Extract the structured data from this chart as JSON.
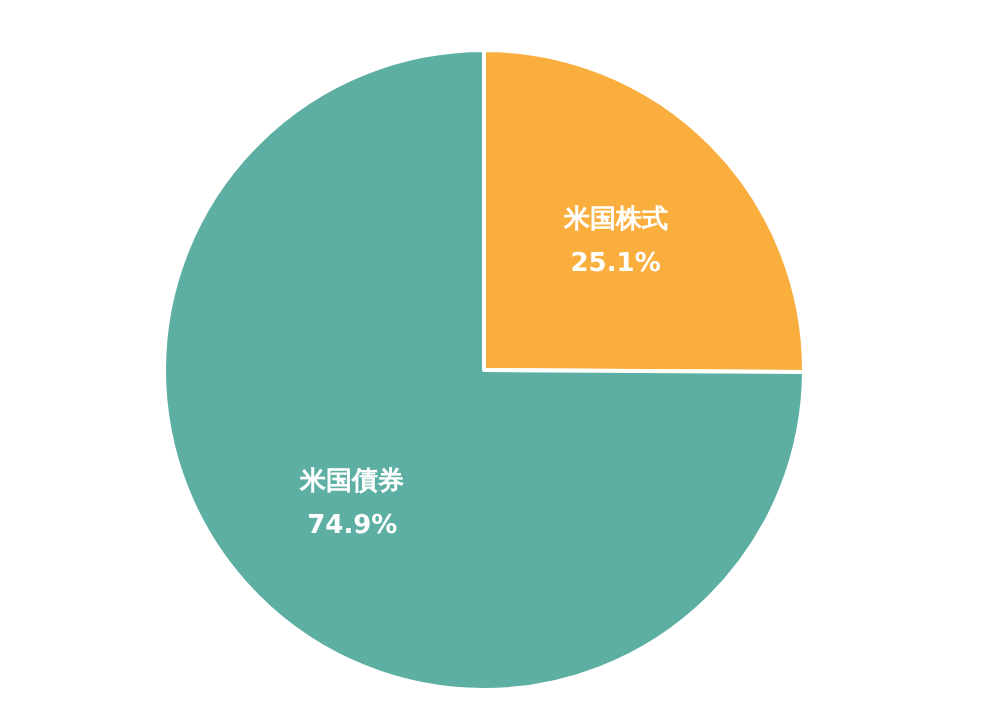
{
  "chart_data": {
    "type": "pie",
    "categories": [
      "米国株式",
      "米国債券"
    ],
    "values": [
      25.1,
      74.9
    ],
    "colors": [
      "#f9ae3d",
      "#5eafa3"
    ],
    "value_labels": [
      "25.1%",
      "74.9%"
    ]
  }
}
